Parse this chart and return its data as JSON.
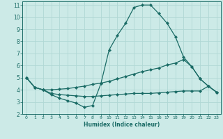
{
  "xlabel": "Humidex (Indice chaleur)",
  "bg_color": "#cceae7",
  "grid_color": "#b0d8d5",
  "line_color": "#1a6b65",
  "xlim": [
    -0.5,
    23.5
  ],
  "ylim": [
    2,
    11.3
  ],
  "xticks": [
    0,
    1,
    2,
    3,
    4,
    5,
    6,
    7,
    8,
    9,
    10,
    11,
    12,
    13,
    14,
    15,
    16,
    17,
    18,
    19,
    20,
    21,
    22,
    23
  ],
  "yticks": [
    2,
    3,
    4,
    5,
    6,
    7,
    8,
    9,
    10,
    11
  ],
  "line1_x": [
    0,
    1,
    2,
    3,
    4,
    5,
    6,
    7,
    8,
    9,
    10,
    11,
    12,
    13,
    14,
    15,
    16,
    17,
    18,
    19,
    20,
    21,
    22,
    23
  ],
  "line1_y": [
    5.0,
    4.2,
    4.0,
    3.6,
    3.3,
    3.1,
    2.9,
    2.55,
    2.7,
    4.5,
    7.3,
    8.5,
    9.5,
    10.8,
    11.0,
    11.0,
    10.3,
    9.5,
    8.4,
    6.7,
    5.9,
    4.9,
    4.3,
    3.8
  ],
  "line2_x": [
    0,
    1,
    2,
    3,
    4,
    5,
    6,
    7,
    8,
    9,
    10,
    11,
    12,
    13,
    14,
    15,
    16,
    17,
    18,
    19,
    20,
    21,
    22,
    23
  ],
  "line2_y": [
    5.0,
    4.2,
    4.0,
    4.0,
    4.05,
    4.1,
    4.2,
    4.3,
    4.45,
    4.55,
    4.7,
    4.9,
    5.1,
    5.3,
    5.5,
    5.65,
    5.8,
    6.05,
    6.2,
    6.5,
    5.9,
    4.9,
    4.3,
    3.8
  ],
  "line3_x": [
    0,
    1,
    2,
    3,
    4,
    5,
    6,
    7,
    8,
    9,
    10,
    11,
    12,
    13,
    14,
    15,
    16,
    17,
    18,
    19,
    20,
    21,
    22,
    23
  ],
  "line3_y": [
    5.0,
    4.2,
    4.0,
    3.7,
    3.6,
    3.55,
    3.5,
    3.45,
    3.45,
    3.5,
    3.55,
    3.6,
    3.65,
    3.7,
    3.7,
    3.7,
    3.75,
    3.8,
    3.85,
    3.9,
    3.9,
    3.9,
    4.3,
    3.8
  ]
}
